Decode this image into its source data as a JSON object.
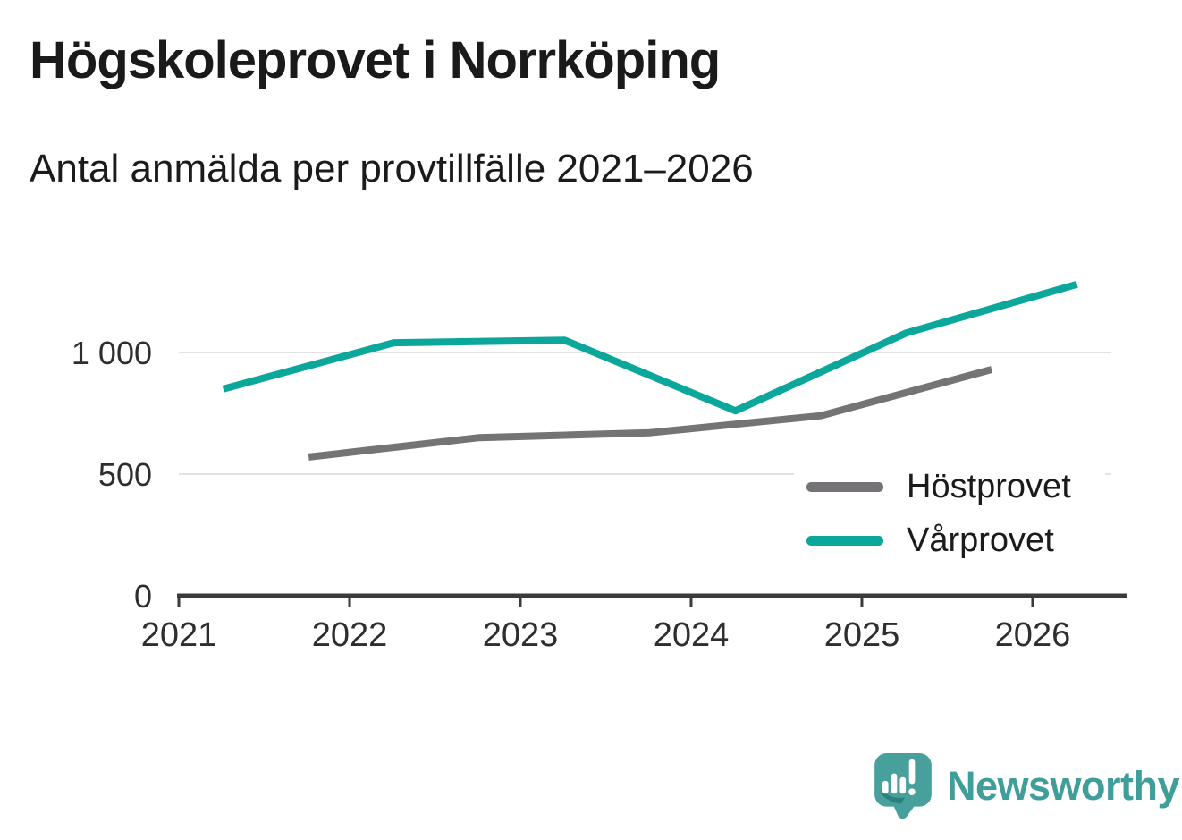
{
  "header": {
    "title": "Högskoleprovet i Norrköping",
    "subtitle": "Antal anmälda per provtillfälle 2021–2026"
  },
  "chart_data": {
    "type": "line",
    "title": "Högskoleprovet i Norrköping",
    "subtitle": "Antal anmälda per provtillfälle 2021–2026",
    "xlabel": "",
    "ylabel": "Antal anmälda",
    "x_unit": "year (fractional: spring ≈ .26, autumn ≈ .76)",
    "x_range": [
      2021,
      2026.55
    ],
    "y_range": [
      0,
      1360
    ],
    "x_ticks": [
      2021,
      2022,
      2023,
      2024,
      2025,
      2026
    ],
    "y_ticks": [
      {
        "value": 0,
        "label": "0"
      },
      {
        "value": 500,
        "label": "500"
      },
      {
        "value": 1000,
        "label": "1 000"
      }
    ],
    "grid": "horizontal",
    "legend_position": "right-center",
    "series": [
      {
        "name": "Höstprovet",
        "color": "#757375",
        "x": [
          2021.76,
          2022.76,
          2023.76,
          2024.76,
          2025.76
        ],
        "values": [
          570,
          650,
          670,
          740,
          930
        ]
      },
      {
        "name": "Vårprovet",
        "color": "#0ba79b",
        "x": [
          2021.26,
          2022.26,
          2023.26,
          2024.26,
          2025.26,
          2026.26
        ],
        "values": [
          850,
          1040,
          1050,
          760,
          1080,
          1280
        ]
      }
    ]
  },
  "branding": {
    "wordmark": "Newsworthy",
    "logo_icon": "newsworthy-speech-bubble-bar-chart-icon",
    "wordmark_color": "#3f9e99",
    "icon_color": "#47a09b"
  },
  "colors": {
    "background": "#ffffff",
    "gridline": "#e3e3e3",
    "axis": "#3a3a3a",
    "tick_label": "#2e2e2e",
    "text": "#1b1b1b"
  }
}
